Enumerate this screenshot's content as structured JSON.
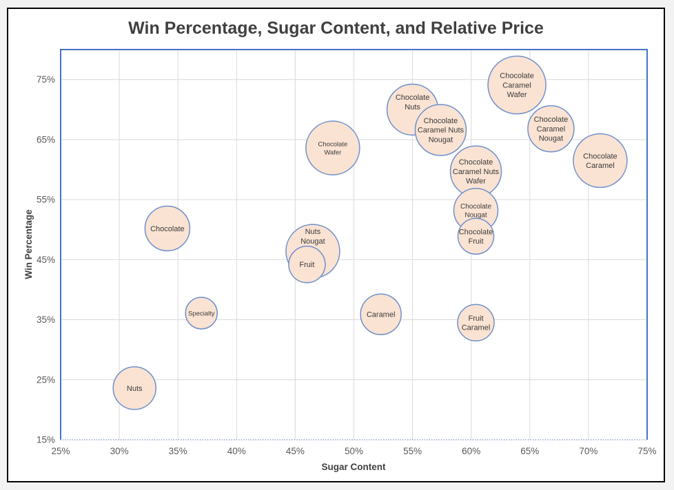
{
  "window": {
    "background_color": "#f2f2f2",
    "card_background": "#ffffff",
    "card_border_color": "#000000"
  },
  "chart_data": {
    "type": "scatter",
    "subtype": "bubble",
    "title": "Win Percentage, Sugar Content, and Relative Price",
    "xlabel": "Sugar Content",
    "ylabel": "Win Percentage",
    "xlim": [
      25,
      75
    ],
    "ylim": [
      15,
      80
    ],
    "x_tick_values": [
      25,
      30,
      35,
      40,
      45,
      50,
      55,
      60,
      65,
      70,
      75
    ],
    "x_tick_labels": [
      "25%",
      "30%",
      "35%",
      "40%",
      "45%",
      "50%",
      "55%",
      "60%",
      "65%",
      "70%",
      "75%"
    ],
    "y_tick_values": [
      15,
      25,
      35,
      45,
      55,
      65,
      75
    ],
    "y_tick_labels": [
      "15%",
      "25%",
      "35%",
      "45%",
      "55%",
      "65%",
      "75%"
    ],
    "grid": true,
    "legend": "none",
    "size_encoding": "Relative Price (bubble radius in px)",
    "points": [
      {
        "label": "Chocolate",
        "label_lines": [
          "Chocolate"
        ],
        "sugar_pct": 34.1,
        "win_pct": 50.2,
        "radius_px": 32.5
      },
      {
        "label": "Nuts",
        "label_lines": [
          "Nuts"
        ],
        "sugar_pct": 31.3,
        "win_pct": 23.6,
        "radius_px": 31
      },
      {
        "label": "Specialty",
        "label_lines": [
          "Specialty"
        ],
        "sugar_pct": 37.0,
        "win_pct": 36.1,
        "radius_px": 23,
        "label_size": 9.5
      },
      {
        "label": "Nuts Nougat",
        "label_lines": [
          "Nuts",
          "Nougat"
        ],
        "sugar_pct": 46.5,
        "win_pct": 46.4,
        "radius_px": 39,
        "label_dy": -22
      },
      {
        "label": "Fruit",
        "label_lines": [
          "Fruit"
        ],
        "sugar_pct": 46.0,
        "win_pct": 44.2,
        "radius_px": 26.5
      },
      {
        "label": "Caramel",
        "label_lines": [
          "Caramel"
        ],
        "sugar_pct": 52.3,
        "win_pct": 35.9,
        "radius_px": 29.5
      },
      {
        "label": "Chocolate Wafer",
        "label_lines": [
          "Chocolate",
          "Wafer"
        ],
        "sugar_pct": 48.2,
        "win_pct": 63.6,
        "radius_px": 39,
        "label_size": 9.5
      },
      {
        "label": "Chocolate Nuts",
        "label_lines": [
          "Chocolate",
          "Nuts"
        ],
        "sugar_pct": 55.0,
        "win_pct": 70.0,
        "radius_px": 37,
        "label_dy": -11
      },
      {
        "label": "Chocolate Caramel Nuts Nougat",
        "label_lines": [
          "Chocolate",
          "Caramel Nuts",
          "Nougat"
        ],
        "sugar_pct": 57.4,
        "win_pct": 66.6,
        "radius_px": 37
      },
      {
        "label": "Chocolate Caramel Wafer",
        "label_lines": [
          "Chocolate",
          "Caramel",
          "Wafer"
        ],
        "sugar_pct": 63.9,
        "win_pct": 74.1,
        "radius_px": 42
      },
      {
        "label": "Chocolate Caramel Nougat",
        "label_lines": [
          "Chocolate",
          "Caramel",
          "Nougat"
        ],
        "sugar_pct": 66.8,
        "win_pct": 66.8,
        "radius_px": 33.5
      },
      {
        "label": "Chocolate Caramel",
        "label_lines": [
          "Chocolate",
          "Caramel"
        ],
        "sugar_pct": 71.0,
        "win_pct": 61.5,
        "radius_px": 39
      },
      {
        "label": "Chocolate Caramel Nuts Wafer",
        "label_lines": [
          "Chocolate",
          "Caramel Nuts",
          "Wafer"
        ],
        "sugar_pct": 60.4,
        "win_pct": 59.7,
        "radius_px": 37
      },
      {
        "label": "Chocolate Nougat",
        "label_lines": [
          "Chocolate",
          "Nougat"
        ],
        "sugar_pct": 60.4,
        "win_pct": 53.2,
        "radius_px": 32,
        "label_size": 10
      },
      {
        "label": "Chocolate Fruit",
        "label_lines": [
          "Chocolate",
          "Fruit"
        ],
        "sugar_pct": 60.4,
        "win_pct": 48.9,
        "radius_px": 26
      },
      {
        "label": "Fruit Caramel",
        "label_lines": [
          "Fruit",
          "Caramel"
        ],
        "sugar_pct": 60.4,
        "win_pct": 34.5,
        "radius_px": 26.5
      }
    ],
    "styles": {
      "bubble_fill": "#fae3d3",
      "bubble_stroke": "#6e8fcb",
      "plot_border": "#4472c4",
      "gridline": "#d9d9d9",
      "axis_dotted": "#8fa3d0",
      "title_color": "#404040",
      "axis_title_color": "#404040",
      "tick_label_color": "#595959",
      "bubble_label_color": "#3a3a3a"
    }
  }
}
